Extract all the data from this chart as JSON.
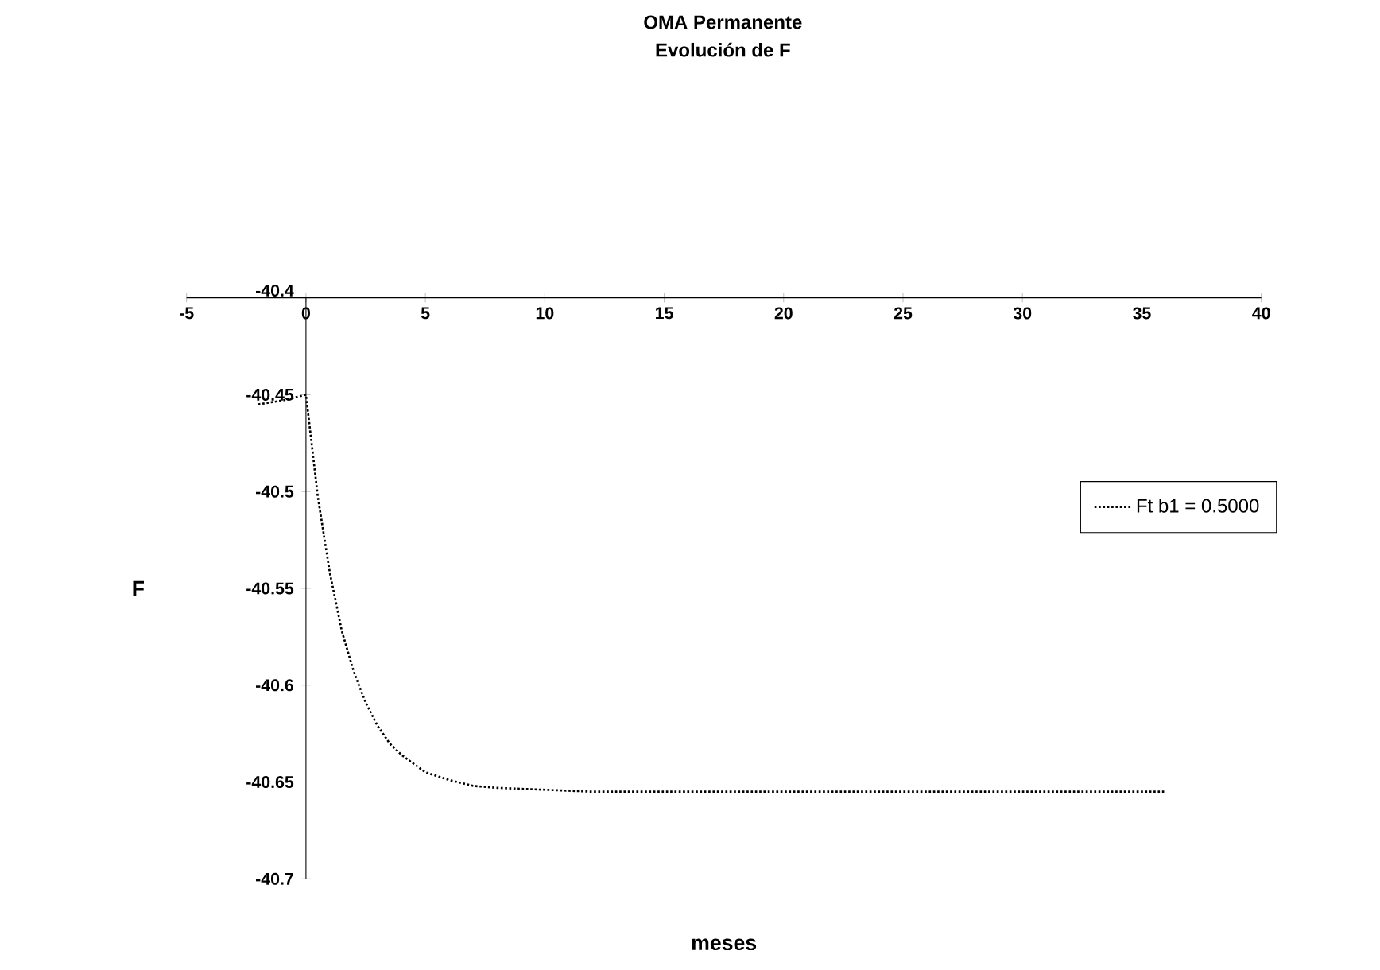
{
  "chart_data": {
    "type": "line",
    "title": "OMA Permanente",
    "subtitle": "Evolución de F",
    "xlabel": "meses",
    "ylabel": "F",
    "x": [
      -2,
      -1,
      0,
      0.5,
      1,
      1.5,
      2,
      2.5,
      3,
      3.5,
      4,
      5,
      6,
      7,
      8,
      10,
      12,
      15,
      20,
      25,
      30,
      36
    ],
    "series": [
      {
        "name": "Ft  b1 = 0.5000",
        "color": "#000000",
        "values": [
          -40.455,
          -40.453,
          -40.45,
          -40.503,
          -40.542,
          -40.572,
          -40.593,
          -40.609,
          -40.621,
          -40.63,
          -40.636,
          -40.645,
          -40.649,
          -40.652,
          -40.653,
          -40.654,
          -40.655,
          -40.655,
          -40.655,
          -40.655,
          -40.655,
          -40.655
        ]
      }
    ],
    "xlim": [
      -5,
      40
    ],
    "ylim": [
      -40.7,
      -40.4
    ],
    "xticks": [
      -5,
      0,
      5,
      10,
      15,
      20,
      25,
      30,
      35,
      40
    ],
    "yticks": [
      -40.7,
      -40.65,
      -40.6,
      -40.55,
      -40.5,
      -40.45,
      -40.4
    ],
    "grid": false,
    "legend": "right",
    "marker": "none",
    "line_style": "dotted"
  }
}
